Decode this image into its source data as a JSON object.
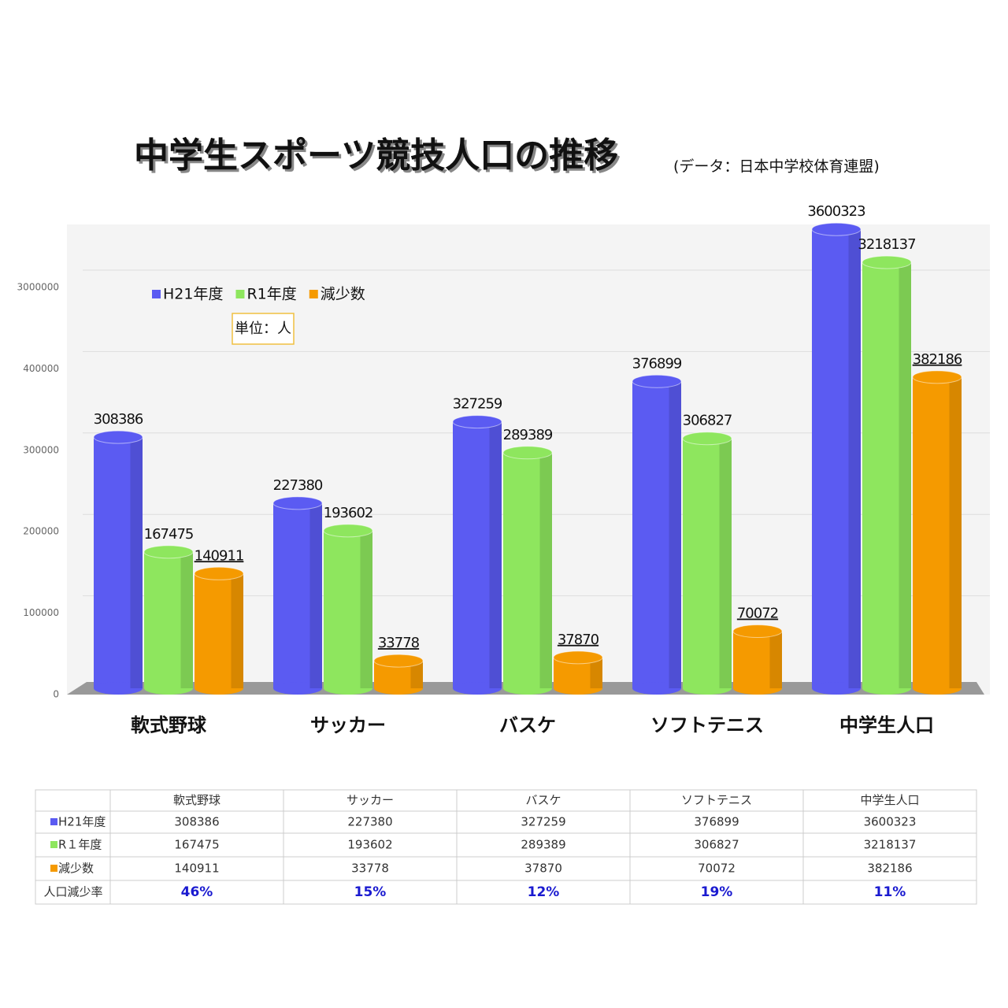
{
  "chart_data": {
    "type": "bar3d",
    "title": "中学生スポーツ競技人口の推移",
    "subtitle": "(データ：日本中学校体育連盟)",
    "note": "単位：人",
    "categories": [
      "軟式野球",
      "サッカー",
      "バスケ",
      "ソフトテニス",
      "中学生人口"
    ],
    "series": [
      {
        "name": "H21年度",
        "color": "#5b5bf2",
        "values": [
          308386,
          227380,
          327259,
          376899,
          3600323
        ]
      },
      {
        "name": "R1年度",
        "color": "#8ee65e",
        "values": [
          167475,
          193602,
          289389,
          306827,
          3218137
        ]
      },
      {
        "name": "減少数",
        "color": "#f59a00",
        "values": [
          140911,
          33778,
          37870,
          70072,
          382186
        ]
      }
    ],
    "ylim": [
      0,
      3730000
    ],
    "yticks": [
      0,
      100000,
      200000,
      300000,
      400000,
      3000000
    ],
    "axis_break": true,
    "legend": "top-left",
    "grid": true
  },
  "table": {
    "row_labels": [
      "H21年度",
      "R１年度",
      "減少数"
    ],
    "rate_label": "人口減少率",
    "rates": [
      "46%",
      "15%",
      "12%",
      "19%",
      "11%"
    ]
  }
}
